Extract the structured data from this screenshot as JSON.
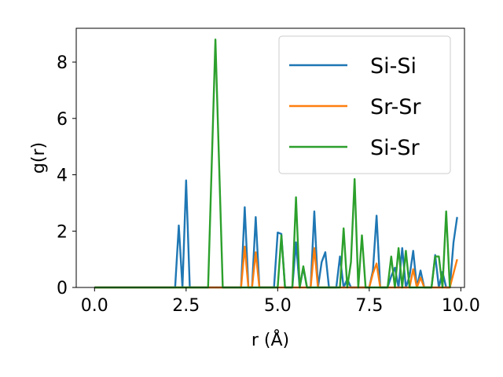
{
  "chart_data": {
    "type": "line",
    "xlabel": "r (Å)",
    "ylabel": "g(r)",
    "xlim": [
      -0.5,
      10.1
    ],
    "ylim": [
      0,
      9.2
    ],
    "xticks": [
      0,
      2.5,
      5,
      7.5,
      10
    ],
    "xtick_labels": [
      "0.0",
      "2.5",
      "5.0",
      "7.5",
      "10.0"
    ],
    "yticks": [
      0,
      2,
      4,
      6,
      8
    ],
    "ytick_labels": [
      "0",
      "2",
      "4",
      "6",
      "8"
    ],
    "grid": false,
    "legend_position": "top-right",
    "series": [
      {
        "name": "Si-Si",
        "color": "#1f77b4",
        "points": [
          [
            0,
            0
          ],
          [
            2.2,
            0
          ],
          [
            2.3,
            2.2
          ],
          [
            2.4,
            0
          ],
          [
            2.5,
            3.8
          ],
          [
            2.6,
            0
          ],
          [
            4.0,
            0
          ],
          [
            4.1,
            2.85
          ],
          [
            4.2,
            0
          ],
          [
            4.3,
            0
          ],
          [
            4.4,
            2.5
          ],
          [
            4.5,
            0
          ],
          [
            4.9,
            0
          ],
          [
            5.0,
            1.95
          ],
          [
            5.1,
            1.9
          ],
          [
            5.2,
            0
          ],
          [
            5.4,
            0
          ],
          [
            5.5,
            1.6
          ],
          [
            5.6,
            0
          ],
          [
            5.7,
            0.7
          ],
          [
            5.8,
            0
          ],
          [
            5.9,
            0
          ],
          [
            6.0,
            2.7
          ],
          [
            6.1,
            0
          ],
          [
            6.2,
            0.9
          ],
          [
            6.3,
            1.25
          ],
          [
            6.4,
            0
          ],
          [
            6.6,
            0
          ],
          [
            6.7,
            1.1
          ],
          [
            6.8,
            0
          ],
          [
            6.9,
            0.3
          ],
          [
            7.0,
            0
          ],
          [
            7.5,
            0
          ],
          [
            7.6,
            0.6
          ],
          [
            7.7,
            2.55
          ],
          [
            7.8,
            0
          ],
          [
            8.0,
            0
          ],
          [
            8.1,
            0.4
          ],
          [
            8.2,
            0.7
          ],
          [
            8.3,
            0
          ],
          [
            8.4,
            1.4
          ],
          [
            8.5,
            0
          ],
          [
            8.6,
            0.4
          ],
          [
            8.7,
            1.3
          ],
          [
            8.8,
            0
          ],
          [
            8.9,
            0.6
          ],
          [
            9.0,
            0
          ],
          [
            9.2,
            0
          ],
          [
            9.3,
            1.15
          ],
          [
            9.4,
            0
          ],
          [
            9.5,
            0.55
          ],
          [
            9.6,
            0
          ],
          [
            9.7,
            0
          ],
          [
            9.8,
            1.6
          ],
          [
            9.9,
            2.5
          ]
        ]
      },
      {
        "name": "Sr-Sr",
        "color": "#ff7f0e",
        "points": [
          [
            0,
            0
          ],
          [
            4.0,
            0
          ],
          [
            4.1,
            1.45
          ],
          [
            4.2,
            0
          ],
          [
            4.3,
            0
          ],
          [
            4.4,
            1.25
          ],
          [
            4.5,
            0
          ],
          [
            5.9,
            0
          ],
          [
            6.0,
            1.4
          ],
          [
            6.1,
            0
          ],
          [
            7.5,
            0
          ],
          [
            7.6,
            0.5
          ],
          [
            7.7,
            0.85
          ],
          [
            7.8,
            0
          ],
          [
            8.6,
            0
          ],
          [
            8.7,
            0.65
          ],
          [
            8.8,
            0
          ],
          [
            8.9,
            0.35
          ],
          [
            9.0,
            0
          ],
          [
            9.7,
            0
          ],
          [
            9.9,
            1.0
          ]
        ]
      },
      {
        "name": "Si-Sr",
        "color": "#2ca02c",
        "points": [
          [
            0,
            0
          ],
          [
            3.1,
            0
          ],
          [
            3.3,
            8.8
          ],
          [
            3.5,
            0
          ],
          [
            5.0,
            0
          ],
          [
            5.1,
            1.85
          ],
          [
            5.2,
            0
          ],
          [
            5.4,
            0
          ],
          [
            5.5,
            3.2
          ],
          [
            5.6,
            0
          ],
          [
            5.7,
            0.75
          ],
          [
            5.8,
            0
          ],
          [
            6.7,
            0
          ],
          [
            6.8,
            2.1
          ],
          [
            6.9,
            0
          ],
          [
            7.0,
            0.9
          ],
          [
            7.1,
            3.85
          ],
          [
            7.2,
            0
          ],
          [
            7.3,
            1.85
          ],
          [
            7.4,
            0
          ],
          [
            8.0,
            0
          ],
          [
            8.1,
            1.1
          ],
          [
            8.2,
            0
          ],
          [
            8.3,
            1.4
          ],
          [
            8.4,
            0
          ],
          [
            8.5,
            1.3
          ],
          [
            8.6,
            0
          ],
          [
            9.2,
            0
          ],
          [
            9.3,
            1.1
          ],
          [
            9.4,
            1.1
          ],
          [
            9.5,
            0
          ],
          [
            9.6,
            2.7
          ],
          [
            9.7,
            0
          ]
        ]
      }
    ]
  }
}
